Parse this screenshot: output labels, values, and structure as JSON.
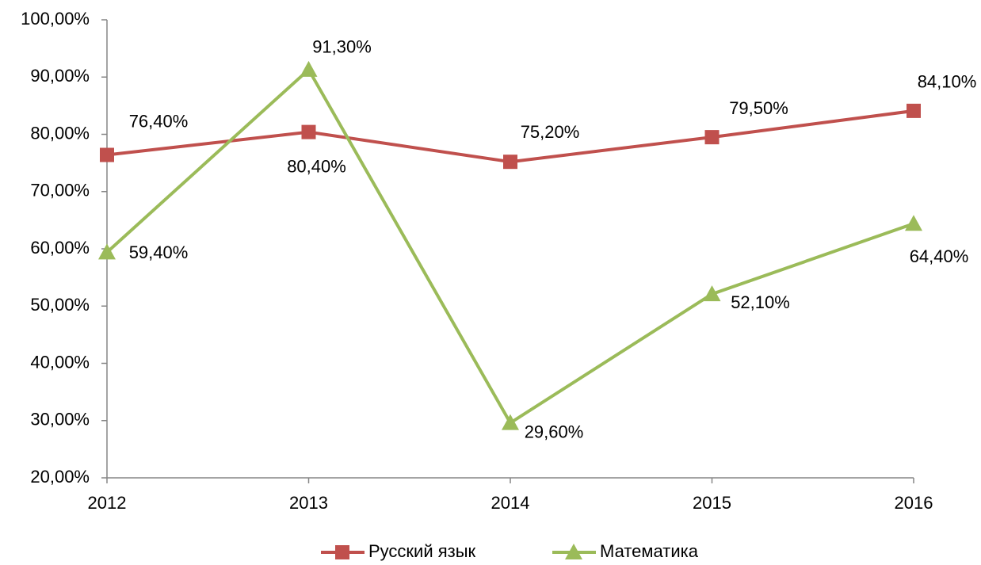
{
  "chart_data": {
    "type": "line",
    "categories": [
      "2012",
      "2013",
      "2014",
      "2015",
      "2016"
    ],
    "series": [
      {
        "name": "Русский язык",
        "color": "#c0504d",
        "marker": "square",
        "values": [
          76.4,
          80.4,
          75.2,
          79.5,
          84.1
        ],
        "value_labels": [
          "76,40%",
          "80,40%",
          "75,20%",
          "79,50%",
          "84,10%"
        ]
      },
      {
        "name": "Математика",
        "color": "#9bbb59",
        "marker": "triangle",
        "values": [
          59.4,
          91.3,
          29.6,
          52.1,
          64.4
        ],
        "value_labels": [
          "59,40%",
          "91,30%",
          "29,60%",
          "52,10%",
          "64,40%"
        ]
      }
    ],
    "ylim": [
      20,
      100
    ],
    "yticks": [
      {
        "value": 20,
        "label": "20,00%"
      },
      {
        "value": 30,
        "label": "30,00%"
      },
      {
        "value": 40,
        "label": "40,00%"
      },
      {
        "value": 50,
        "label": "50,00%"
      },
      {
        "value": 60,
        "label": "60,00%"
      },
      {
        "value": 70,
        "label": "70,00%"
      },
      {
        "value": 80,
        "label": "80,00%"
      },
      {
        "value": 90,
        "label": "90,00%"
      },
      {
        "value": 100,
        "label": "100,00%"
      }
    ],
    "grid": false,
    "legend": "bottom"
  }
}
